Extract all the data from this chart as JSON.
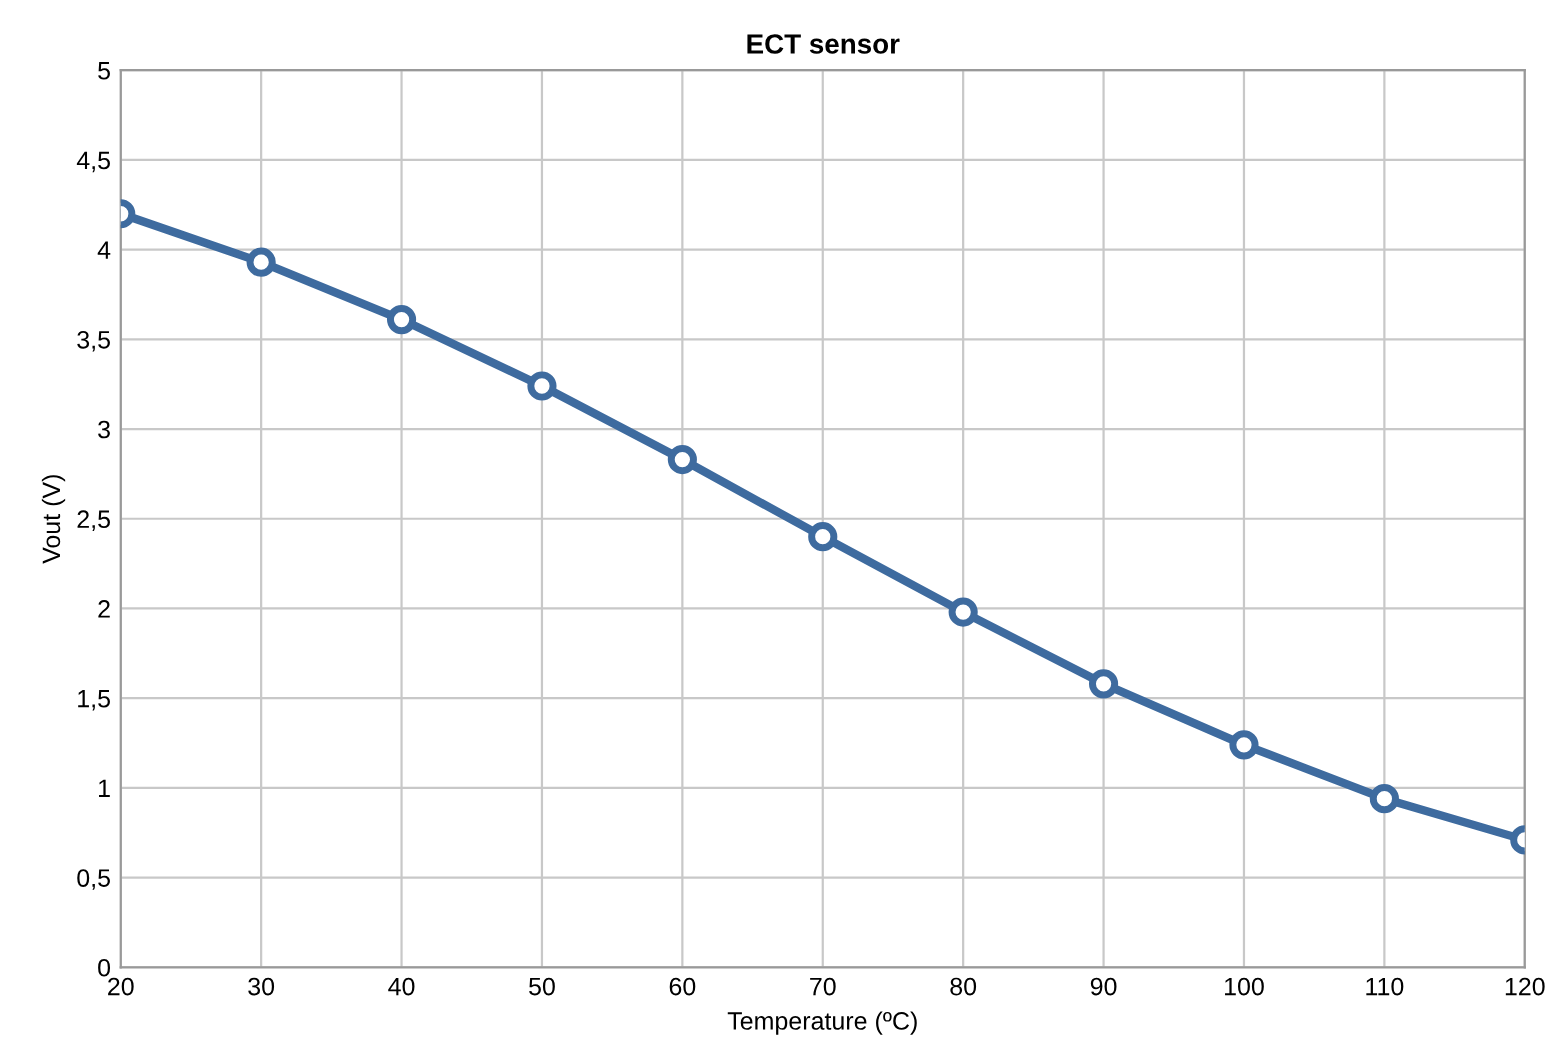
{
  "chart_data": {
    "type": "line",
    "title": "ECT sensor",
    "xlabel": "Temperature (ºC)",
    "ylabel": "Vout (V)",
    "x": [
      20,
      30,
      40,
      50,
      60,
      70,
      80,
      90,
      100,
      110,
      120
    ],
    "series": [
      {
        "color": "#3e6b9f",
        "values": [
          4.2,
          3.93,
          3.61,
          3.24,
          2.83,
          2.4,
          1.98,
          1.58,
          1.24,
          0.94,
          0.71
        ]
      }
    ],
    "xlim": [
      20,
      120
    ],
    "xticks": [
      20,
      30,
      40,
      50,
      60,
      70,
      80,
      90,
      100,
      110,
      120
    ],
    "ylim": [
      0,
      5
    ],
    "yticks": [
      0,
      {
        "value": 0.5,
        "label": "0,5"
      },
      1,
      {
        "value": 1.5,
        "label": "1,5"
      },
      2,
      {
        "value": 2.5,
        "label": "2,5"
      },
      3,
      {
        "value": 3.5,
        "label": "3,5"
      },
      4,
      {
        "value": 4.5,
        "label": "4,5"
      },
      5
    ],
    "grid": true,
    "marker": "circle",
    "line_style": "solid"
  }
}
